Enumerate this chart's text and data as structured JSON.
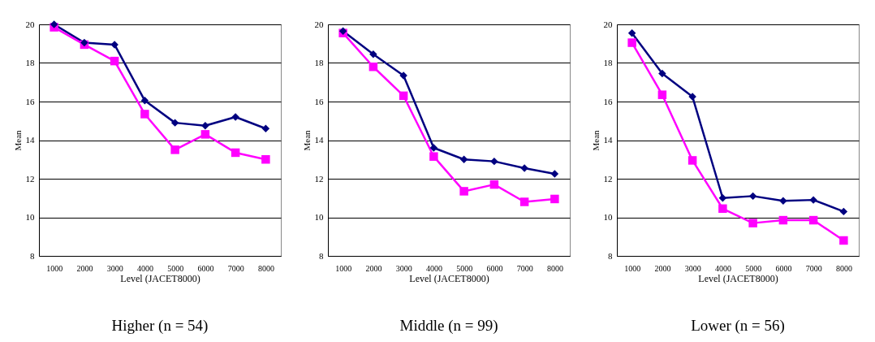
{
  "chart_data": [
    {
      "type": "line",
      "title": "Higher (n = 54)",
      "xlabel": "Level (JACET8000)",
      "ylabel": "Mean",
      "categories": [
        "1000",
        "2000",
        "3000",
        "4000",
        "5000",
        "6000",
        "7000",
        "8000"
      ],
      "ylim": [
        8,
        20
      ],
      "yticks": [
        8,
        10,
        12,
        14,
        16,
        18,
        20
      ],
      "grid": "y",
      "series": [
        {
          "color": "#000080",
          "marker": "diamond",
          "values": [
            20.0,
            19.05,
            18.95,
            16.05,
            14.9,
            14.75,
            15.2,
            14.6
          ]
        },
        {
          "color": "#ff00ff",
          "marker": "square",
          "values": [
            19.85,
            18.95,
            18.1,
            15.35,
            13.5,
            14.3,
            13.35,
            13.0
          ]
        }
      ]
    },
    {
      "type": "line",
      "title": "Middle (n = 99)",
      "xlabel": "Level (JACET8000)",
      "ylabel": "Mean",
      "categories": [
        "1000",
        "2000",
        "3000",
        "4000",
        "5000",
        "6000",
        "7000",
        "8000"
      ],
      "ylim": [
        8,
        20
      ],
      "yticks": [
        8,
        10,
        12,
        14,
        16,
        18,
        20
      ],
      "grid": "y",
      "series": [
        {
          "color": "#000080",
          "marker": "diamond",
          "values": [
            19.65,
            18.45,
            17.35,
            13.6,
            13.0,
            12.9,
            12.55,
            12.25
          ]
        },
        {
          "color": "#ff00ff",
          "marker": "square",
          "values": [
            19.55,
            17.8,
            16.3,
            13.15,
            11.35,
            11.7,
            10.8,
            10.95
          ]
        }
      ]
    },
    {
      "type": "line",
      "title": "Lower (n = 56)",
      "xlabel": "Level (JACET8000)",
      "ylabel": "Mean",
      "categories": [
        "1000",
        "2000",
        "3000",
        "4000",
        "5000",
        "6000",
        "7000",
        "8000"
      ],
      "ylim": [
        8,
        20
      ],
      "yticks": [
        8,
        10,
        12,
        14,
        16,
        18,
        20
      ],
      "grid": "y",
      "series": [
        {
          "color": "#000080",
          "marker": "diamond",
          "values": [
            19.55,
            17.45,
            16.25,
            11.0,
            11.1,
            10.85,
            10.9,
            10.3
          ]
        },
        {
          "color": "#ff00ff",
          "marker": "square",
          "values": [
            19.05,
            16.35,
            12.95,
            10.45,
            9.7,
            9.85,
            9.85,
            8.8
          ]
        }
      ]
    }
  ]
}
